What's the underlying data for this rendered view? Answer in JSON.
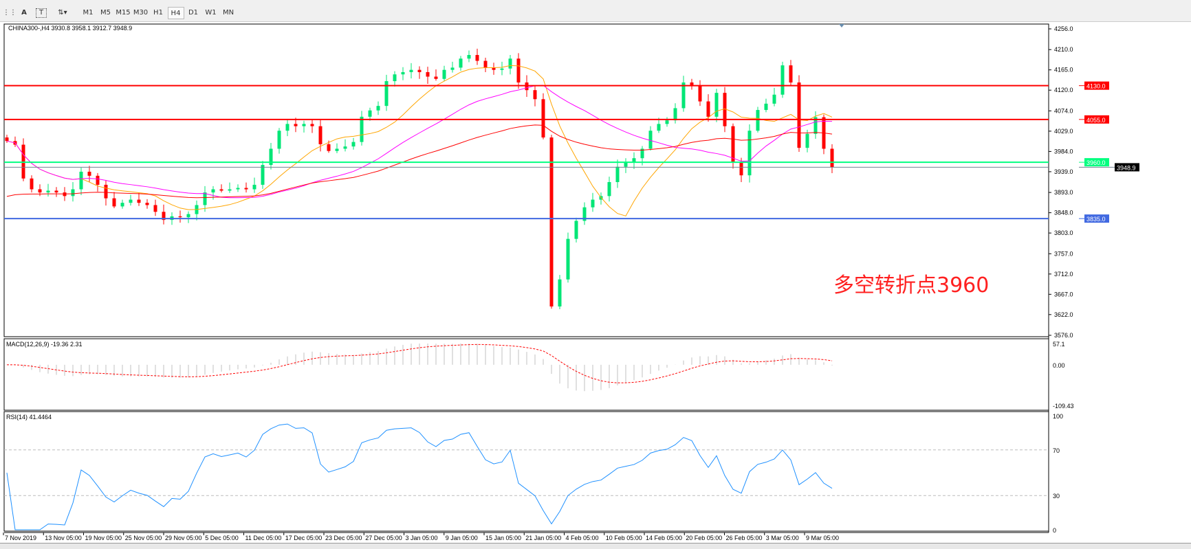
{
  "toolbar": {
    "icons": [
      "grid-icon",
      "text-icon",
      "text-label-icon",
      "arrows-icon"
    ],
    "timeframes": [
      "M1",
      "M5",
      "M15",
      "M30",
      "H1",
      "H4",
      "D1",
      "W1",
      "MN"
    ],
    "active": "H4"
  },
  "chart_header": "CHINA300-,H4  3930.8 3958.1 3912.7 3948.9",
  "annotation": "多空转折点3960",
  "macd_label": "MACD(12,26,9) -19.36 2.31",
  "rsi_label": "RSI(14) 41.4464",
  "chart_data": {
    "type": "candlestick",
    "symbol": "CHINA300-",
    "timeframe": "H4",
    "last_ohlc": [
      3930.8,
      3958.1,
      3912.7,
      3948.9
    ],
    "ylim": [
      3576,
      4256
    ],
    "y_ticks": [
      "4256.0",
      "4210.0",
      "4165.0",
      "4120.0",
      "4074.0",
      "4029.0",
      "3984.0",
      "3939.0",
      "3893.0",
      "3848.0",
      "3803.0",
      "3757.0",
      "3712.0",
      "3667.0",
      "3622.0",
      "3576.0"
    ],
    "x_ticks": [
      "7 Nov 2019",
      "13 Nov 05:00",
      "19 Nov 05:00",
      "25 Nov 05:00",
      "29 Nov 05:00",
      "5 Dec 05:00",
      "11 Dec 05:00",
      "17 Dec 05:00",
      "23 Dec 05:00",
      "27 Dec 05:00",
      "3 Jan 05:00",
      "9 Jan 05:00",
      "15 Jan 05:00",
      "21 Jan 05:00",
      "4 Feb 05:00",
      "10 Feb 05:00",
      "14 Feb 05:00",
      "20 Feb 05:00",
      "26 Feb 05:00",
      "3 Mar 05:00",
      "9 Mar 05:00"
    ],
    "closes": [
      4007,
      3999,
      3924,
      3900,
      3893,
      3897,
      3893,
      3885,
      3900,
      3939,
      3930,
      3910,
      3880,
      3862,
      3870,
      3877,
      3870,
      3865,
      3850,
      3832,
      3840,
      3838,
      3845,
      3865,
      3893,
      3900,
      3897,
      3900,
      3903,
      3900,
      3910,
      3954,
      3990,
      4030,
      4045,
      4040,
      4045,
      4040,
      4000,
      3985,
      3990,
      3995,
      4005,
      4061,
      4075,
      4085,
      4140,
      4155,
      4160,
      4165,
      4160,
      4150,
      4145,
      4165,
      4170,
      4190,
      4198,
      4185,
      4170,
      4165,
      4168,
      4190,
      4137,
      4120,
      4100,
      4015,
      3640,
      3700,
      3790,
      3830,
      3860,
      3877,
      3885,
      3916,
      3950,
      3960,
      3969,
      3990,
      4030,
      4045,
      4053,
      4080,
      4137,
      4130,
      4095,
      4061,
      4114,
      4040,
      3960,
      3931,
      4030,
      4076,
      4090,
      4110,
      4175,
      4137,
      3992,
      4023,
      4060,
      3990,
      3948.9
    ],
    "levels": [
      {
        "value": 4130.0,
        "label": "4130.0",
        "color": "#ff0000"
      },
      {
        "value": 4055.0,
        "label": "4055.0",
        "color": "#ff0000"
      },
      {
        "value": 3960.0,
        "label": "3960.0",
        "color": "#00ff7f"
      },
      {
        "value": 3835.0,
        "label": "3835.0",
        "color": "#4169e1"
      }
    ],
    "bid": {
      "value": 3948.9,
      "label": "3948.9"
    },
    "colors": {
      "up": "#00e676",
      "down": "#ff0000",
      "ma_fast": "#ffa500",
      "ma_mid": "#ff00ff",
      "ma_slow": "#ff0000",
      "rsi": "#1e90ff",
      "macd_signal": "#ff0000",
      "macd_hist": "#c0c0c0"
    },
    "macd": {
      "ylim": [
        -109.43,
        57.1
      ],
      "ticks": [
        "57.1",
        "0.00",
        "-109.43"
      ]
    },
    "rsi": {
      "ylim": [
        0,
        100
      ],
      "ticks": [
        "100",
        "70",
        "30",
        "0"
      ],
      "levels": [
        70,
        30
      ]
    }
  }
}
